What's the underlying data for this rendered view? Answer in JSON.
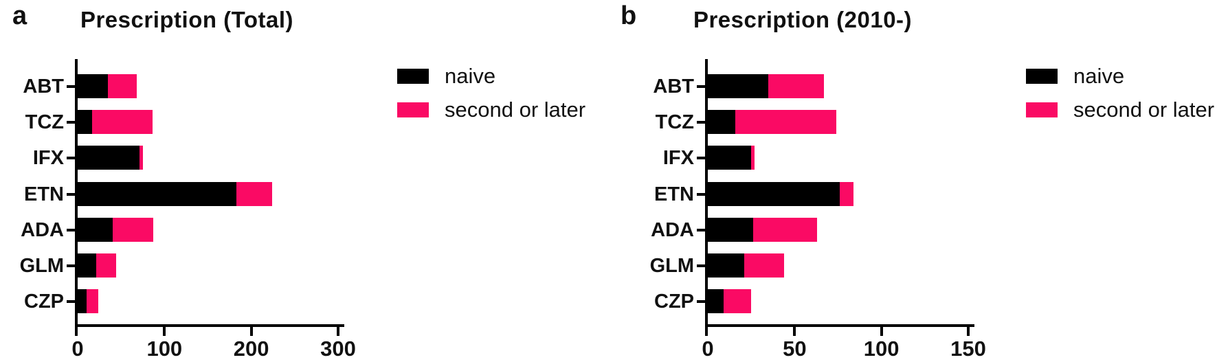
{
  "colors": {
    "naive": "#000000",
    "second_or_later": "#FA0A64",
    "axis": "#000000",
    "background": "#ffffff"
  },
  "chart_data": [
    {
      "type": "bar",
      "orientation": "horizontal",
      "stacked": true,
      "panel_letter": "a",
      "title": "Prescription (Total)",
      "categories": [
        "ABT",
        "TCZ",
        "IFX",
        "ETN",
        "ADA",
        "GLM",
        "CZP"
      ],
      "series": [
        {
          "name": "naive",
          "color": "#000000",
          "values": [
            35,
            17,
            71,
            183,
            40,
            21,
            10
          ]
        },
        {
          "name": "second or later",
          "color": "#FA0A64",
          "values": [
            33,
            69,
            4,
            41,
            47,
            23,
            14
          ]
        }
      ],
      "xlim": [
        0,
        300
      ],
      "xticks": [
        0,
        100,
        200,
        300
      ],
      "grid": false,
      "legend_position": "right"
    },
    {
      "type": "bar",
      "orientation": "horizontal",
      "stacked": true,
      "panel_letter": "b",
      "title": "Prescription (2010-)",
      "categories": [
        "ABT",
        "TCZ",
        "IFX",
        "ETN",
        "ADA",
        "GLM",
        "CZP"
      ],
      "series": [
        {
          "name": "naive",
          "color": "#000000",
          "values": [
            35,
            16,
            25,
            76,
            26,
            21,
            9
          ]
        },
        {
          "name": "second or later",
          "color": "#FA0A64",
          "values": [
            32,
            58,
            2,
            8,
            37,
            23,
            16
          ]
        }
      ],
      "xlim": [
        0,
        150
      ],
      "xticks": [
        0,
        50,
        100,
        150
      ],
      "grid": false,
      "legend_position": "right"
    }
  ]
}
